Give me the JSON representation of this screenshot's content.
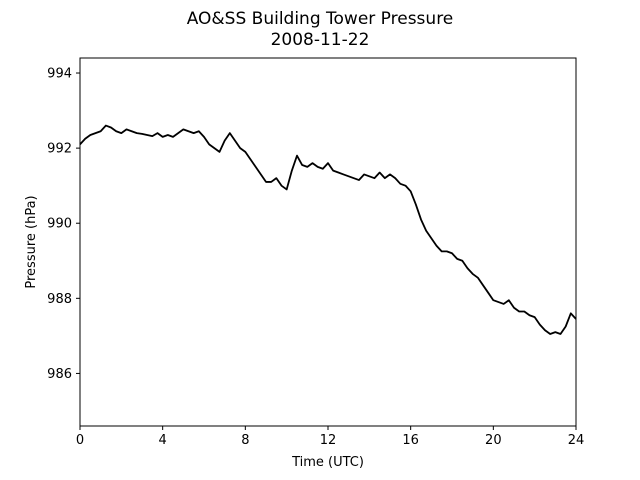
{
  "chart_data": {
    "type": "line",
    "title": "AO&SS Building Tower Pressure",
    "subtitle": "2008-11-22",
    "xlabel": "Time (UTC)",
    "ylabel": "Pressure (hPa)",
    "xlim": [
      0,
      24
    ],
    "ylim": [
      984.6,
      994.4
    ],
    "xticks": [
      0,
      4,
      8,
      12,
      16,
      20,
      24
    ],
    "yticks": [
      986,
      988,
      990,
      992,
      994
    ],
    "grid": false,
    "line_color": "#000000",
    "series": [
      {
        "x": [
          0,
          0.25,
          0.5,
          0.75,
          1.0,
          1.25,
          1.5,
          1.75,
          2.0,
          2.25,
          2.5,
          2.75,
          3.0,
          3.25,
          3.5,
          3.75,
          4.0,
          4.25,
          4.5,
          4.75,
          5.0,
          5.25,
          5.5,
          5.75,
          6.0,
          6.25,
          6.5,
          6.75,
          7.0,
          7.25,
          7.5,
          7.75,
          8.0,
          8.25,
          8.5,
          8.75,
          9.0,
          9.25,
          9.5,
          9.75,
          10.0,
          10.25,
          10.5,
          10.75,
          11.0,
          11.25,
          11.5,
          11.75,
          12.0,
          12.25,
          12.5,
          12.75,
          13.0,
          13.25,
          13.5,
          13.75,
          14.0,
          14.25,
          14.5,
          14.75,
          15.0,
          15.25,
          15.5,
          15.75,
          16.0,
          16.25,
          16.5,
          16.75,
          17.0,
          17.25,
          17.5,
          17.75,
          18.0,
          18.25,
          18.5,
          18.75,
          19.0,
          19.25,
          19.5,
          19.75,
          20.0,
          20.25,
          20.5,
          20.75,
          21.0,
          21.25,
          21.5,
          21.75,
          22.0,
          22.25,
          22.5,
          22.75,
          23.0,
          23.25,
          23.5,
          23.75,
          24.0
        ],
        "values": [
          992.1,
          992.25,
          992.35,
          992.4,
          992.45,
          992.6,
          992.55,
          992.45,
          992.4,
          992.5,
          992.45,
          992.4,
          992.38,
          992.35,
          992.32,
          992.4,
          992.3,
          992.35,
          992.3,
          992.4,
          992.5,
          992.45,
          992.4,
          992.45,
          992.3,
          992.1,
          992.0,
          991.9,
          992.2,
          992.4,
          992.2,
          992.0,
          991.9,
          991.7,
          991.5,
          991.3,
          991.1,
          991.1,
          991.2,
          991.0,
          990.9,
          991.4,
          991.8,
          991.55,
          991.5,
          991.6,
          991.5,
          991.45,
          991.6,
          991.4,
          991.35,
          991.3,
          991.25,
          991.2,
          991.15,
          991.3,
          991.25,
          991.2,
          991.35,
          991.2,
          991.3,
          991.2,
          991.05,
          991.0,
          990.85,
          990.5,
          990.1,
          989.8,
          989.6,
          989.4,
          989.25,
          989.25,
          989.2,
          989.05,
          989.0,
          988.8,
          988.65,
          988.55,
          988.35,
          988.15,
          987.95,
          987.9,
          987.85,
          987.95,
          987.75,
          987.65,
          987.65,
          987.55,
          987.5,
          987.3,
          987.15,
          987.05,
          987.1,
          987.05,
          987.25,
          987.6,
          987.45
        ]
      }
    ]
  }
}
